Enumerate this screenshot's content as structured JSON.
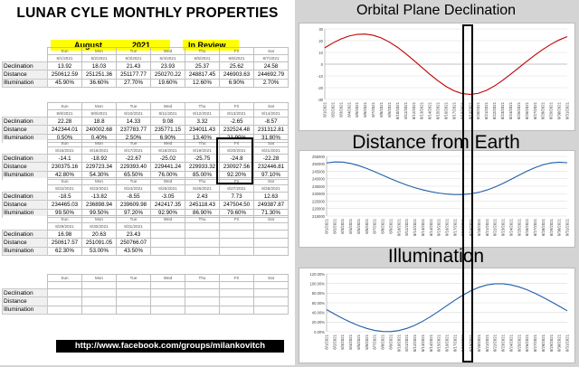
{
  "title": "LUNAR CYLE MONTHLY PROPERTIES",
  "month": "August",
  "year": "2021",
  "status": "In Review",
  "days": [
    "Sun",
    "Mon",
    "Tue",
    "Wed",
    "Thu",
    "Fri",
    "Sat"
  ],
  "row_labels": [
    "Declination",
    "Distance",
    "Illumination"
  ],
  "weeks": [
    {
      "dates": [
        "8/1/2021",
        "8/2/2021",
        "8/3/2021",
        "8/4/2021",
        "8/5/2021",
        "8/6/2021",
        "8/7/2021"
      ],
      "declination": [
        "13.92",
        "18.03",
        "21.43",
        "23.93",
        "25.37",
        "25.62",
        "24.58"
      ],
      "distance": [
        "250612.59",
        "251251.36",
        "251177.77",
        "250270.22",
        "248817.45",
        "246903.63",
        "244692.79"
      ],
      "illumination": [
        "45.90%",
        "36.60%",
        "27.70%",
        "19.60%",
        "12.60%",
        "6.90%",
        "2.70%"
      ]
    },
    {
      "dates": [
        "8/8/2021",
        "8/9/2021",
        "8/10/2021",
        "8/11/2021",
        "8/12/2021",
        "8/13/2021",
        "8/14/2021"
      ],
      "declination": [
        "22.28",
        "18.8",
        "14.33",
        "9.08",
        "3.32",
        "-2.65",
        "-8.57"
      ],
      "distance": [
        "242344.01",
        "240002.68",
        "237783.77",
        "235771.15",
        "234011.43",
        "232524.48",
        "231312.81"
      ],
      "illumination": [
        "0.50%",
        "0.40%",
        "2.50%",
        "6.90%",
        "13.40%",
        "21.90%",
        "31.80%"
      ]
    },
    {
      "dates": [
        "8/15/2021",
        "8/16/2021",
        "8/17/2021",
        "8/18/2021",
        "8/19/2021",
        "8/20/2021",
        "8/21/2021"
      ],
      "declination": [
        "-14.1",
        "-18.92",
        "-22.67",
        "-25.02",
        "-25.75",
        "-24.8",
        "-22.28"
      ],
      "distance": [
        "230375.16",
        "229723.34",
        "229393.40",
        "229441.24",
        "229933.32",
        "230927.56",
        "232446.81"
      ],
      "illumination": [
        "42.80%",
        "54.30%",
        "65.50%",
        "76.00%",
        "85.00%",
        "92.20%",
        "97.10%"
      ]
    },
    {
      "dates": [
        "8/22/2021",
        "8/23/2021",
        "8/24/2021",
        "8/25/2021",
        "8/26/2021",
        "8/27/2021",
        "8/28/2021"
      ],
      "declination": [
        "-18.5",
        "-13.82",
        "-8.55",
        "-3.05",
        "2.43",
        "7.73",
        "12.63"
      ],
      "distance": [
        "234465.03",
        "236898.94",
        "239609.98",
        "242417.35",
        "245118.43",
        "247504.50",
        "249387.87"
      ],
      "illumination": [
        "99.50%",
        "99.50%",
        "97.20%",
        "92.90%",
        "86.90%",
        "79.60%",
        "71.30%"
      ]
    },
    {
      "dates": [
        "8/29/2021",
        "8/30/2021",
        "8/31/2021",
        "",
        "",
        "",
        ""
      ],
      "declination": [
        "16.98",
        "20.63",
        "23.43",
        "",
        "",
        "",
        ""
      ],
      "distance": [
        "250617.57",
        "251091.05",
        "250766.07",
        "",
        "",
        "",
        ""
      ],
      "illumination": [
        "62.30%",
        "53.00%",
        "43.50%",
        "",
        "",
        "",
        ""
      ]
    },
    {
      "dates": [
        "",
        "",
        "",
        "",
        "",
        "",
        ""
      ],
      "declination": [
        "",
        "",
        "",
        "",
        "",
        "",
        ""
      ],
      "distance": [
        "",
        "",
        "",
        "",
        "",
        "",
        ""
      ],
      "illumination": [
        "",
        "",
        "",
        "",
        "",
        "",
        ""
      ]
    }
  ],
  "link": "http://www.facebook.com/groups/milankovitch",
  "chart_data": [
    {
      "type": "line",
      "title": "Orbital Plane Declination",
      "x": [
        "8/1/2021",
        "8/2/2021",
        "8/3/2021",
        "8/4/2021",
        "8/5/2021",
        "8/6/2021",
        "8/7/2021",
        "8/8/2021",
        "8/9/2021",
        "8/10/2021",
        "8/11/2021",
        "8/12/2021",
        "8/13/2021",
        "8/14/2021",
        "8/15/2021",
        "8/16/2021",
        "8/17/2021",
        "8/18/2021",
        "8/19/2021",
        "8/20/2021",
        "8/21/2021",
        "8/22/2021",
        "8/23/2021",
        "8/24/2021",
        "8/25/2021",
        "8/26/2021",
        "8/27/2021",
        "8/28/2021",
        "8/29/2021",
        "8/30/2021",
        "8/31/2021"
      ],
      "values": [
        13.92,
        18.03,
        21.43,
        23.93,
        25.37,
        25.62,
        24.58,
        22.28,
        18.8,
        14.33,
        9.08,
        3.32,
        -2.65,
        -8.57,
        -14.1,
        -18.92,
        -22.67,
        -25.02,
        -25.75,
        -24.8,
        -22.28,
        -18.5,
        -13.82,
        -8.55,
        -3.05,
        2.43,
        7.73,
        12.63,
        16.98,
        20.63,
        23.43
      ],
      "ylim": [
        -30,
        30
      ],
      "yticks": [
        "30",
        "20",
        "10",
        "0",
        "-10",
        "-20",
        "-30"
      ],
      "color": "#c00000"
    },
    {
      "type": "line",
      "title": "Distance from Earth",
      "x": [
        "8/1/2021",
        "8/2/2021",
        "8/3/2021",
        "8/4/2021",
        "8/5/2021",
        "8/6/2021",
        "8/7/2021",
        "8/8/2021",
        "8/9/2021",
        "8/10/2021",
        "8/11/2021",
        "8/12/2021",
        "8/13/2021",
        "8/14/2021",
        "8/15/2021",
        "8/16/2021",
        "8/17/2021",
        "8/18/2021",
        "8/19/2021",
        "8/20/2021",
        "8/21/2021",
        "8/22/2021",
        "8/23/2021",
        "8/24/2021",
        "8/25/2021",
        "8/26/2021",
        "8/27/2021",
        "8/28/2021",
        "8/29/2021",
        "8/30/2021",
        "8/31/2021"
      ],
      "values": [
        250612.59,
        251251.36,
        251177.77,
        250270.22,
        248817.45,
        246903.63,
        244692.79,
        242344.01,
        240002.68,
        237783.77,
        235771.15,
        234011.43,
        232524.48,
        231312.81,
        230375.16,
        229723.34,
        229393.4,
        229441.24,
        229933.32,
        230927.56,
        232446.81,
        234465.03,
        236898.94,
        239609.98,
        242417.35,
        245118.43,
        247504.5,
        249387.87,
        250617.57,
        251091.05,
        250766.07
      ],
      "ylim": [
        215000,
        255000
      ],
      "yticks": [
        "255000",
        "250000",
        "245000",
        "240000",
        "235000",
        "230000",
        "225000",
        "220000",
        "215000"
      ],
      "color": "#1f5fa8"
    },
    {
      "type": "line",
      "title": "Illumination",
      "x": [
        "8/1/2021",
        "8/2/2021",
        "8/3/2021",
        "8/4/2021",
        "8/5/2021",
        "8/6/2021",
        "8/7/2021",
        "8/8/2021",
        "8/9/2021",
        "8/10/2021",
        "8/11/2021",
        "8/12/2021",
        "8/13/2021",
        "8/14/2021",
        "8/15/2021",
        "8/16/2021",
        "8/17/2021",
        "8/18/2021",
        "8/19/2021",
        "8/20/2021",
        "8/21/2021",
        "8/22/2021",
        "8/23/2021",
        "8/24/2021",
        "8/25/2021",
        "8/26/2021",
        "8/27/2021",
        "8/28/2021",
        "8/29/2021",
        "8/30/2021",
        "8/31/2021"
      ],
      "values": [
        45.9,
        36.6,
        27.7,
        19.6,
        12.6,
        6.9,
        2.7,
        0.5,
        0.4,
        2.5,
        6.9,
        13.4,
        21.9,
        31.8,
        42.8,
        54.3,
        65.5,
        76.0,
        85.0,
        92.2,
        97.1,
        99.5,
        99.5,
        97.2,
        92.9,
        86.9,
        79.6,
        71.3,
        62.3,
        53.0,
        43.5
      ],
      "ylim": [
        0,
        120
      ],
      "yticks": [
        "120.00%",
        "100.00%",
        "80.00%",
        "60.00%",
        "40.00%",
        "20.00%",
        "0.00%"
      ],
      "color": "#1f5fa8"
    }
  ]
}
